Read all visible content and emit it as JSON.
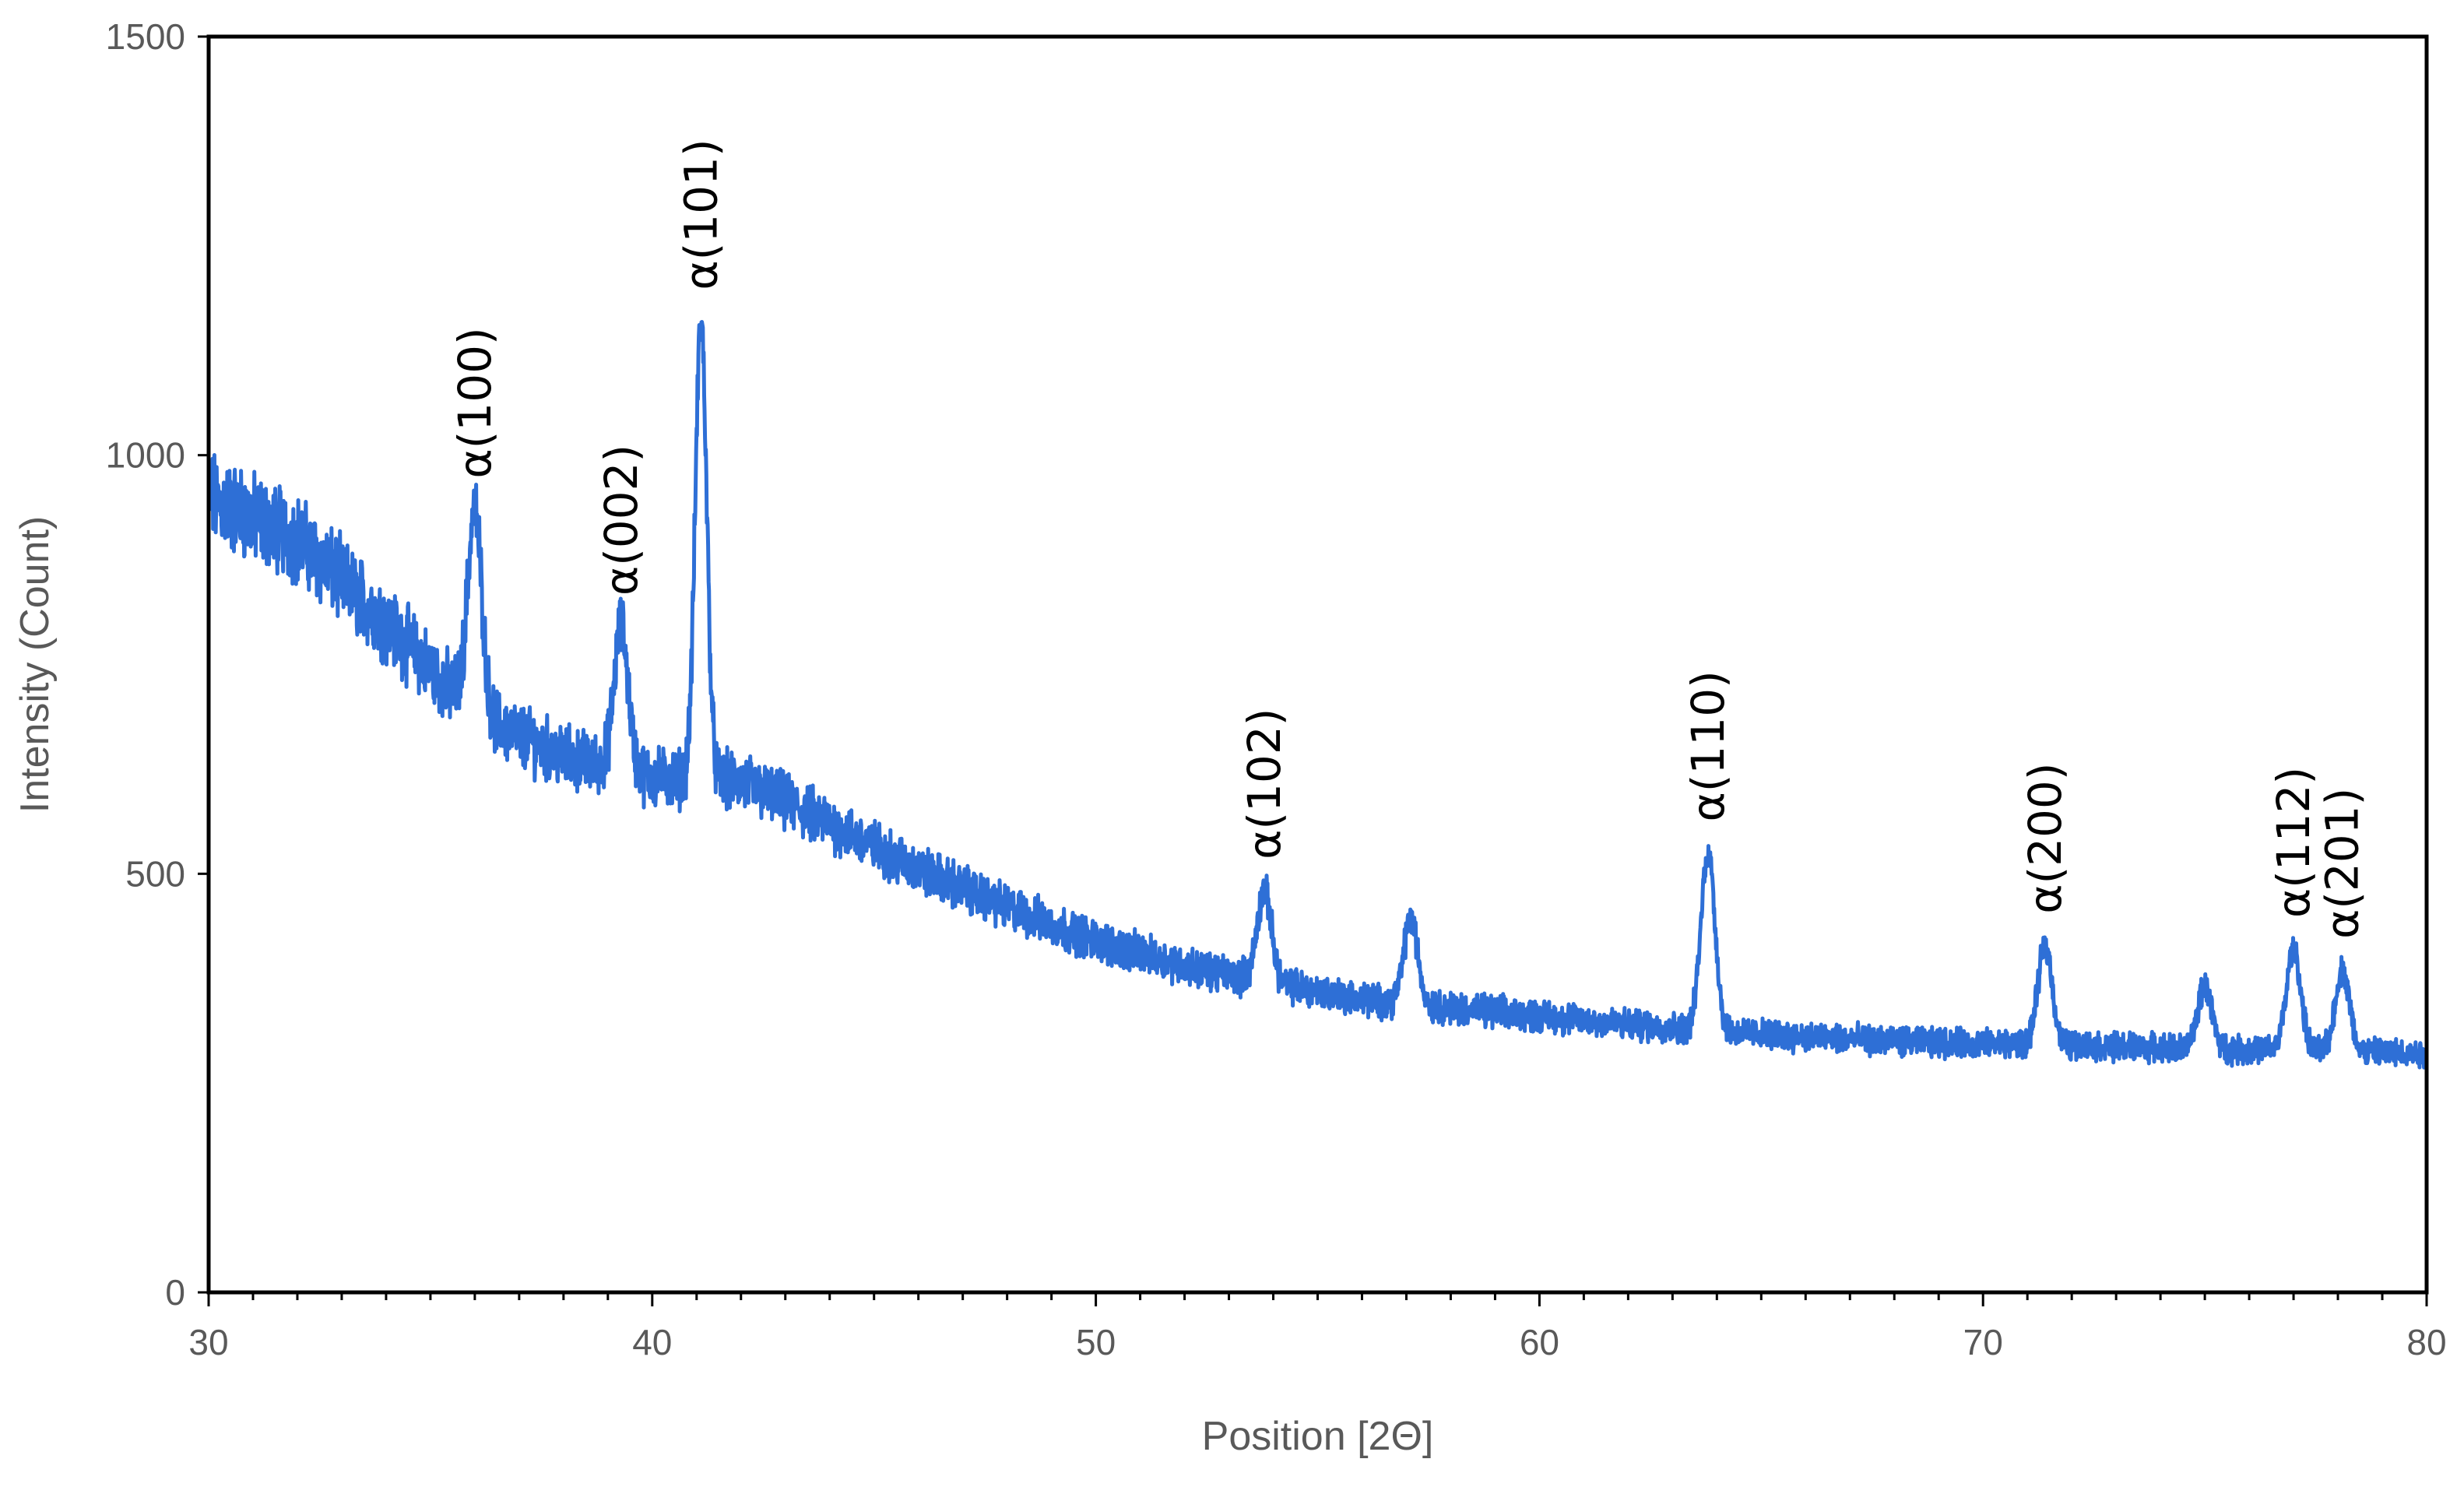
{
  "chart_data": {
    "type": "line",
    "title": "",
    "xlabel": "Position [2Θ]",
    "ylabel": "Intensity (Count)",
    "xlim": [
      30,
      80
    ],
    "ylim": [
      0,
      1500
    ],
    "x_ticks": [
      "30",
      "40",
      "50",
      "60",
      "70",
      "80"
    ],
    "y_ticks": [
      "0",
      "500",
      "1000",
      "1500"
    ],
    "grid": false,
    "legend": "none",
    "series_color": "#2E6FD6",
    "baseline": [
      {
        "x": 30,
        "y": 950
      },
      {
        "x": 32,
        "y": 900
      },
      {
        "x": 34,
        "y": 800
      },
      {
        "x": 36,
        "y": 690
      },
      {
        "x": 38,
        "y": 640
      },
      {
        "x": 40,
        "y": 615
      },
      {
        "x": 42,
        "y": 610
      },
      {
        "x": 44,
        "y": 560
      },
      {
        "x": 46,
        "y": 505
      },
      {
        "x": 48,
        "y": 460
      },
      {
        "x": 50,
        "y": 420
      },
      {
        "x": 52,
        "y": 390
      },
      {
        "x": 54,
        "y": 370
      },
      {
        "x": 56,
        "y": 350
      },
      {
        "x": 58,
        "y": 340
      },
      {
        "x": 60,
        "y": 330
      },
      {
        "x": 62,
        "y": 320
      },
      {
        "x": 64,
        "y": 312
      },
      {
        "x": 66,
        "y": 305
      },
      {
        "x": 68,
        "y": 300
      },
      {
        "x": 70,
        "y": 297
      },
      {
        "x": 72,
        "y": 295
      },
      {
        "x": 74,
        "y": 292
      },
      {
        "x": 76,
        "y": 290
      },
      {
        "x": 78,
        "y": 288
      },
      {
        "x": 80,
        "y": 285
      }
    ],
    "peaks": [
      {
        "x": 36.0,
        "y": 935,
        "label": "α(100)"
      },
      {
        "x": 39.3,
        "y": 795,
        "label": "α(002)"
      },
      {
        "x": 41.1,
        "y": 1160,
        "label": "α(101)"
      },
      {
        "x": 53.8,
        "y": 480,
        "label": "α(102)"
      },
      {
        "x": 57.1,
        "y": 445,
        "label": ""
      },
      {
        "x": 63.8,
        "y": 525,
        "label": "α(110)"
      },
      {
        "x": 71.4,
        "y": 415,
        "label": "α(200)"
      },
      {
        "x": 75.0,
        "y": 365,
        "label": ""
      },
      {
        "x": 77.0,
        "y": 410,
        "label": "α(112)"
      },
      {
        "x": 78.1,
        "y": 385,
        "label": "α(201)"
      }
    ],
    "noise_amplitude": 28
  }
}
